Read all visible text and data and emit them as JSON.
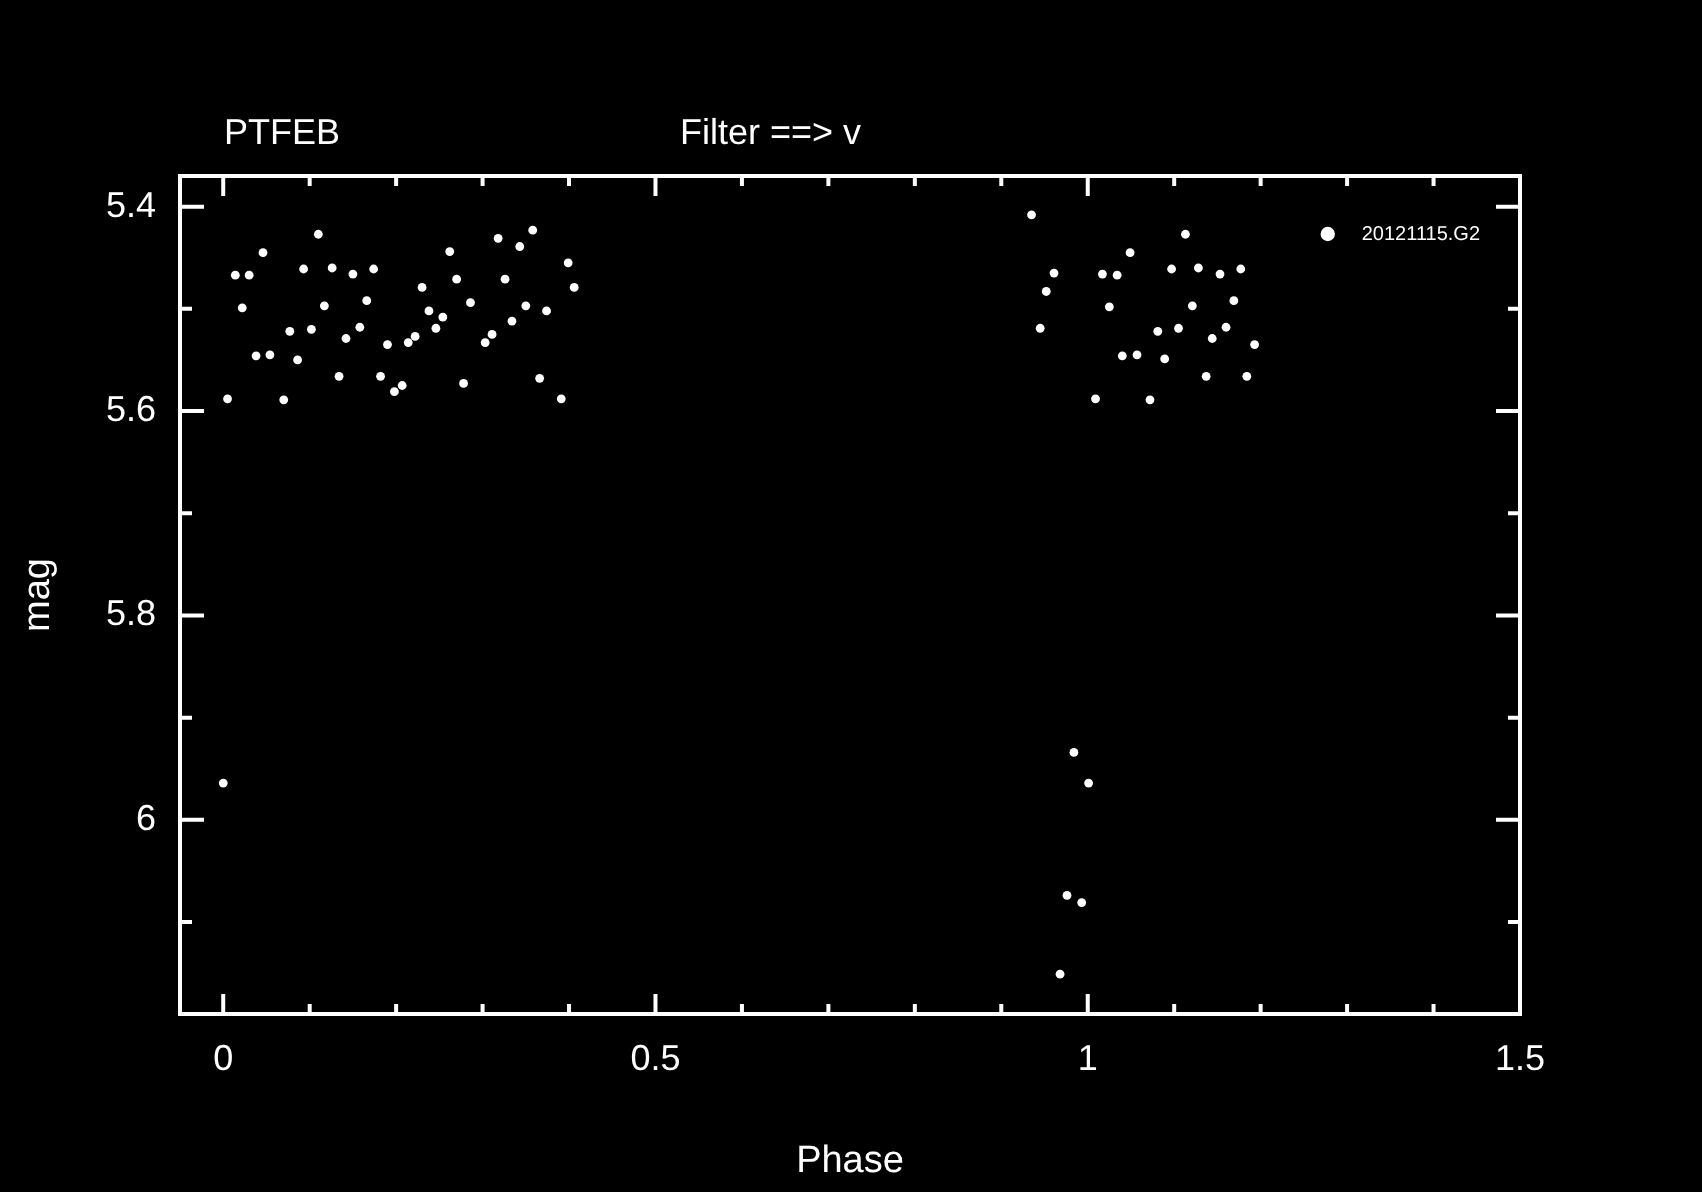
{
  "chart_data": {
    "type": "scatter",
    "title": "PTFEB",
    "subtitle": "Filter ==> v",
    "xlabel": "Phase",
    "ylabel": "mag",
    "xlim": [
      -0.05,
      1.5
    ],
    "ylim": [
      6.19,
      5.37
    ],
    "xticks": [
      0,
      {
        "value": 0.1,
        "label": null
      },
      {
        "value": 0.2,
        "label": null
      },
      {
        "value": 0.3,
        "label": null
      },
      {
        "value": 0.4,
        "label": null
      },
      0.5,
      {
        "value": 0.6,
        "label": null
      },
      {
        "value": 0.7,
        "label": null
      },
      {
        "value": 0.8,
        "label": null
      },
      {
        "value": 0.9,
        "label": null
      },
      1,
      {
        "value": 1.1,
        "label": null
      },
      {
        "value": 1.2,
        "label": null
      },
      {
        "value": 1.3,
        "label": null
      },
      {
        "value": 1.4,
        "label": null
      },
      1.5
    ],
    "yticks": [
      5.4,
      {
        "value": 5.5,
        "label": null
      },
      5.6,
      {
        "value": 5.7,
        "label": null
      },
      5.8,
      {
        "value": 5.9,
        "label": null
      },
      6,
      {
        "value": 6.1,
        "label": null
      }
    ],
    "marker": "circle",
    "legend": "top right",
    "grid": false,
    "series": [
      {
        "name": "20121115.G2",
        "color": "#ffffff",
        "x": [
          0.11,
          0.358,
          0.046,
          0.318,
          0.343,
          0.262,
          0.014,
          0.03,
          0.093,
          0.126,
          0.15,
          0.174,
          0.399,
          0.23,
          0.27,
          0.326,
          0.406,
          0.022,
          0.117,
          0.166,
          0.238,
          0.254,
          0.286,
          0.35,
          0.374,
          0.334,
          0.246,
          0.077,
          0.102,
          0.158,
          0.142,
          0.222,
          0.214,
          0.19,
          0.311,
          0.303,
          0.038,
          0.054,
          0.086,
          0.134,
          0.182,
          0.207,
          0.198,
          0.278,
          0.366,
          0.005,
          0.07,
          0.391,
          0.0,
          0.935,
          1.113,
          1.049,
          0.961,
          1.017,
          1.034,
          1.097,
          1.128,
          1.153,
          1.177,
          0.952,
          1.025,
          1.121,
          1.169,
          0.945,
          1.081,
          1.105,
          1.16,
          1.144,
          1.193,
          1.04,
          1.057,
          1.089,
          1.137,
          1.184,
          1.009,
          1.072,
          0.984,
          1.001,
          0.976,
          0.993,
          0.968
        ],
        "values": [
          5.427,
          5.423,
          5.445,
          5.431,
          5.439,
          5.444,
          5.467,
          5.467,
          5.461,
          5.46,
          5.466,
          5.461,
          5.455,
          5.479,
          5.471,
          5.471,
          5.479,
          5.499,
          5.497,
          5.492,
          5.502,
          5.508,
          5.494,
          5.497,
          5.502,
          5.512,
          5.519,
          5.522,
          5.52,
          5.518,
          5.529,
          5.527,
          5.533,
          5.535,
          5.525,
          5.533,
          5.546,
          5.545,
          5.55,
          5.566,
          5.566,
          5.575,
          5.581,
          5.573,
          5.568,
          5.588,
          5.589,
          5.588,
          5.964,
          5.408,
          5.427,
          5.445,
          5.465,
          5.466,
          5.467,
          5.461,
          5.46,
          5.466,
          5.461,
          5.483,
          5.498,
          5.497,
          5.492,
          5.519,
          5.522,
          5.519,
          5.518,
          5.529,
          5.535,
          5.546,
          5.545,
          5.549,
          5.566,
          5.566,
          5.588,
          5.589,
          5.934,
          5.964,
          6.074,
          6.081,
          6.151
        ]
      }
    ]
  }
}
